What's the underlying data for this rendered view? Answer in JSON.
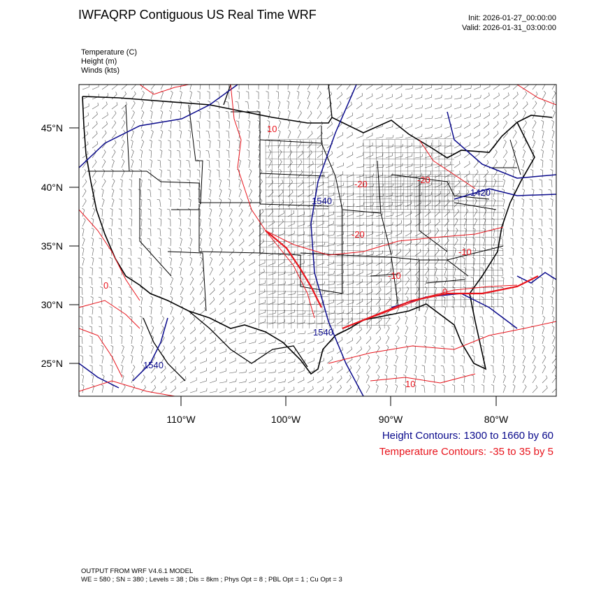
{
  "header": {
    "title": "IWFAQRP Contiguous US Real Time WRF",
    "init": "Init: 2026-01-27_00:00:00",
    "valid": "Valid: 2026-01-31_03:00:00"
  },
  "variables": [
    "Temperature   (C)",
    "Height   (m)",
    "Winds   (kts)"
  ],
  "lat_labels": [
    "45°N",
    "40°N",
    "35°N",
    "30°N",
    "25°N"
  ],
  "lon_labels": [
    "110°W",
    "100°W",
    "90°W",
    "80°W"
  ],
  "contour_labels": {
    "height": [
      "1540",
      "1540",
      "1540",
      "1420"
    ],
    "temperature": [
      "10",
      "-20",
      "-20",
      "-20",
      "-10",
      "-10",
      "0",
      "0",
      "10"
    ]
  },
  "legend": {
    "height": "Height Contours: 1300 to 1660 by 60",
    "temperature": "Temperature Contours: -35 to 35 by 5"
  },
  "footer": {
    "line1": "OUTPUT FROM WRF V4.6.1 MODEL",
    "line2": "WE = 580 ; SN = 380 ; Levels = 38 ; Dis = 8km ; Phys Opt = 8 ; PBL Opt = 1 ; Cu Opt = 3"
  },
  "colors": {
    "height": "#0a0a8c",
    "temperature": "#e8141c",
    "boundaries": "#000000"
  }
}
